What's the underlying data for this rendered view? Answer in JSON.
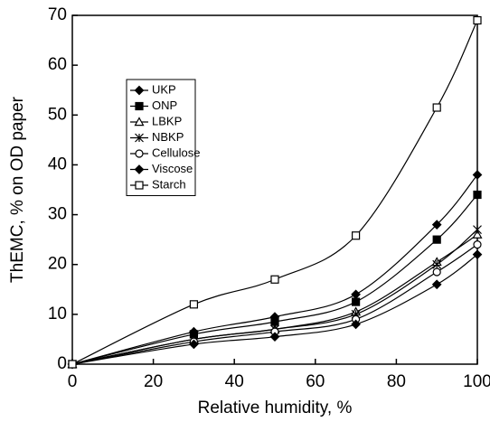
{
  "chart_data": {
    "type": "line",
    "xlabel": "Relative humidity, %",
    "ylabel": "ThEMC, % on OD paper",
    "x": [
      0,
      30,
      50,
      70,
      90,
      100
    ],
    "xlim": [
      0,
      100
    ],
    "xticks": [
      0,
      20,
      40,
      60,
      80,
      100
    ],
    "ylim": [
      0,
      70
    ],
    "yticks": [
      0,
      10,
      20,
      30,
      40,
      50,
      60,
      70
    ],
    "grid": false,
    "smooth": true,
    "legend": "upper left",
    "series": [
      {
        "name": "UKP",
        "color": "#000000",
        "marker": "diamond-filled",
        "values": [
          0,
          6.5,
          9.5,
          14,
          28,
          38
        ]
      },
      {
        "name": "ONP",
        "color": "#000000",
        "marker": "square-filled",
        "values": [
          0,
          6,
          8.5,
          12.5,
          25,
          34
        ]
      },
      {
        "name": "LBKP",
        "color": "#000000",
        "marker": "triangle-open",
        "values": [
          0,
          5,
          7,
          10.5,
          20.5,
          26
        ]
      },
      {
        "name": "NBKP",
        "color": "#000000",
        "marker": "star",
        "values": [
          0,
          5,
          7,
          10,
          20,
          27
        ]
      },
      {
        "name": "Cellulose",
        "color": "#000000",
        "marker": "circle-open",
        "values": [
          0,
          4.5,
          6.5,
          9,
          18.5,
          24
        ]
      },
      {
        "name": "Viscose",
        "color": "#000000",
        "marker": "diamond-filled",
        "values": [
          0,
          4,
          5.5,
          8,
          16,
          22
        ]
      },
      {
        "name": "Starch",
        "color": "#000000",
        "marker": "square-open",
        "values": [
          0,
          12,
          17,
          25.8,
          51.5,
          69
        ]
      }
    ]
  }
}
